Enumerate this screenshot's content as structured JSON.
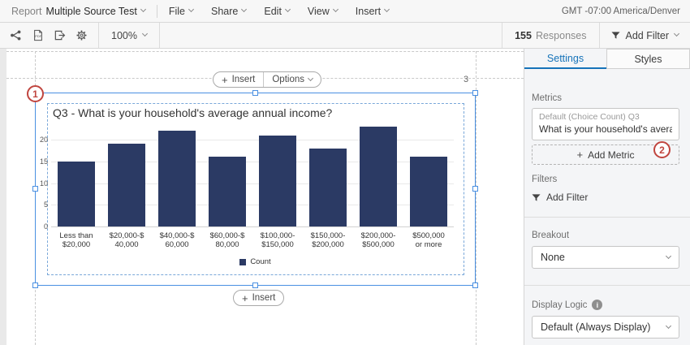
{
  "menu": {
    "report_label": "Report",
    "report_name": "Multiple Source Test",
    "items": [
      "File",
      "Share",
      "Edit",
      "View",
      "Insert"
    ],
    "timezone": "GMT -07:00 America/Denver"
  },
  "toolbar": {
    "zoom_level": "100%",
    "responses_count": "155",
    "responses_label": "Responses",
    "add_filter_label": "Add Filter"
  },
  "canvas": {
    "insert_label": "Insert",
    "options_label": "Options",
    "page_number": "3",
    "annotation_1": "1",
    "annotation_2": "2"
  },
  "chart_data": {
    "type": "bar",
    "title": "Q3 - What is your household's average annual income?",
    "categories": [
      [
        "Less than",
        "$20,000"
      ],
      [
        "$20,000-$",
        "40,000"
      ],
      [
        "$40,000-$",
        "60,000"
      ],
      [
        "$60,000-$",
        "80,000"
      ],
      [
        "$100,000-",
        "$150,000"
      ],
      [
        "$150,000-",
        "$200,000"
      ],
      [
        "$200,000-",
        "$500,000"
      ],
      [
        "$500,000",
        "or more"
      ]
    ],
    "values": [
      15,
      19,
      22,
      16,
      21,
      18,
      23,
      16
    ],
    "series": [
      {
        "name": "Count",
        "values": [
          15,
          19,
          22,
          16,
          21,
          18,
          23,
          16
        ]
      }
    ],
    "legend": [
      "Count"
    ],
    "legend_position": "bottom",
    "xlabel": "",
    "ylabel": "",
    "y_ticks": [
      0,
      5,
      10,
      15,
      20
    ],
    "ylim": [
      0,
      23
    ],
    "grid": true,
    "bar_color": "#2b3a64"
  },
  "sidebar": {
    "tabs": [
      {
        "label": "Settings",
        "active": true
      },
      {
        "label": "Styles",
        "active": false
      }
    ],
    "metrics_label": "Metrics",
    "metric": {
      "line1": "Default (Choice Count) Q3",
      "line2": "What is your household's averag…"
    },
    "add_metric_label": "Add Metric",
    "filters_label": "Filters",
    "add_filter_label": "Add Filter",
    "breakout_label": "Breakout",
    "breakout_value": "None",
    "display_logic_label": "Display Logic",
    "display_logic_value": "Default (Always Display)"
  },
  "colors": {
    "accent_blue": "#1673b9",
    "selection_blue": "#4a90e2",
    "bar_navy": "#2b3a64",
    "annotation_red": "#c0453f"
  }
}
